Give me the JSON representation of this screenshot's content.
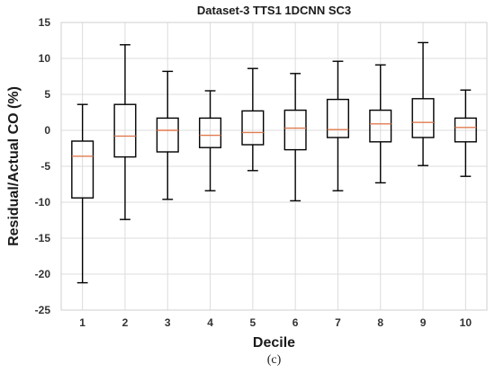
{
  "chart_data": {
    "type": "boxplot",
    "title": "Dataset-3 TTS1 1DCNN SC3",
    "xlabel": "Decile",
    "ylabel": "Residual/Actual CO (%)",
    "caption": "(c)",
    "categories": [
      "1",
      "2",
      "3",
      "4",
      "5",
      "6",
      "7",
      "8",
      "9",
      "10"
    ],
    "yticks": [
      "-25",
      "-20",
      "-15",
      "-10",
      "-5",
      "0",
      "5",
      "10",
      "15"
    ],
    "ylim": [
      -25,
      15
    ],
    "grid": true,
    "colors": {
      "box": "#000000",
      "median": "#e07b4f",
      "grid": "#dcdcdc",
      "frame": "#cfcfcf"
    },
    "boxes": [
      {
        "category": "1",
        "whisker_low": -21.2,
        "q1": -9.4,
        "median": -3.6,
        "q3": -1.5,
        "whisker_high": 3.6
      },
      {
        "category": "2",
        "whisker_low": -12.4,
        "q1": -3.7,
        "median": -0.8,
        "q3": 3.6,
        "whisker_high": 11.9
      },
      {
        "category": "3",
        "whisker_low": -9.6,
        "q1": -3.0,
        "median": 0.0,
        "q3": 1.7,
        "whisker_high": 8.2
      },
      {
        "category": "4",
        "whisker_low": -8.4,
        "q1": -2.4,
        "median": -0.7,
        "q3": 1.7,
        "whisker_high": 5.5
      },
      {
        "category": "5",
        "whisker_low": -5.6,
        "q1": -2.0,
        "median": -0.3,
        "q3": 2.7,
        "whisker_high": 8.6
      },
      {
        "category": "6",
        "whisker_low": -9.8,
        "q1": -2.7,
        "median": 0.3,
        "q3": 2.8,
        "whisker_high": 7.9
      },
      {
        "category": "7",
        "whisker_low": -8.4,
        "q1": -1.0,
        "median": 0.1,
        "q3": 4.3,
        "whisker_high": 9.6
      },
      {
        "category": "8",
        "whisker_low": -7.3,
        "q1": -1.6,
        "median": 0.9,
        "q3": 2.8,
        "whisker_high": 9.1
      },
      {
        "category": "9",
        "whisker_low": -4.9,
        "q1": -1.0,
        "median": 1.1,
        "q3": 4.4,
        "whisker_high": 12.2
      },
      {
        "category": "10",
        "whisker_low": -6.4,
        "q1": -1.6,
        "median": 0.4,
        "q3": 1.7,
        "whisker_high": 5.6
      }
    ]
  }
}
